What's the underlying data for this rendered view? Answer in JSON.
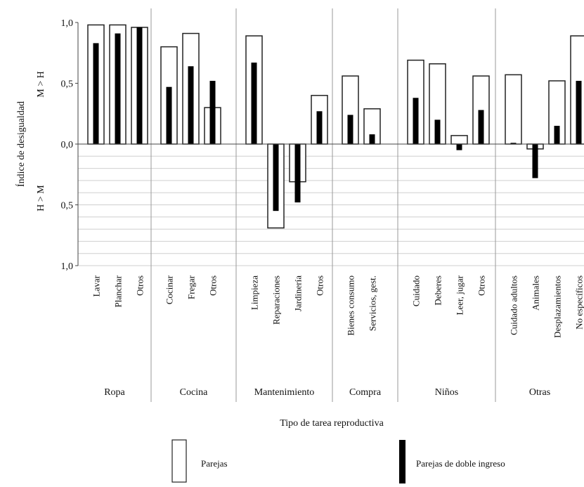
{
  "chart_data": {
    "type": "bar",
    "xlabel": "Tipo de tarea reproductiva",
    "ylabel": "Índice de desigualdad",
    "y_direction_labels": {
      "positive": "M > H",
      "negative": "H > M"
    },
    "ylim": [
      -1.0,
      1.0
    ],
    "yticks": [
      {
        "value": 1.0,
        "label": "1,0"
      },
      {
        "value": 0.5,
        "label": "0,5"
      },
      {
        "value": 0.0,
        "label": "0,0"
      },
      {
        "value": -0.5,
        "label": "0,5"
      },
      {
        "value": -1.0,
        "label": "1,0"
      }
    ],
    "grid": "horizontal, lower half",
    "legend_position": "bottom",
    "series": [
      {
        "name": "Parejas",
        "style": "hollow",
        "color": "#ffffff"
      },
      {
        "name": "Parejas de doble ingreso",
        "style": "solid",
        "color": "#000000"
      }
    ],
    "groups": [
      {
        "name": "Ropa",
        "tasks": [
          {
            "label": "Lavar",
            "values": [
              0.98,
              0.83
            ]
          },
          {
            "label": "Planchar",
            "values": [
              0.98,
              0.91
            ]
          },
          {
            "label": "Otros",
            "values": [
              0.96,
              0.96
            ]
          }
        ]
      },
      {
        "name": "Cocina",
        "tasks": [
          {
            "label": "Cocinar",
            "values": [
              0.8,
              0.47
            ]
          },
          {
            "label": "Fregar",
            "values": [
              0.91,
              0.64
            ]
          },
          {
            "label": "Otros",
            "values": [
              0.3,
              0.52
            ]
          }
        ]
      },
      {
        "name": "Mantenimiento",
        "tasks": [
          {
            "label": "Limpieza",
            "values": [
              0.89,
              0.67
            ]
          },
          {
            "label": "Reparaciones",
            "values": [
              -0.69,
              -0.55
            ]
          },
          {
            "label": "Jardinería",
            "values": [
              -0.31,
              -0.48
            ]
          },
          {
            "label": "Otros",
            "values": [
              0.4,
              0.27
            ]
          }
        ]
      },
      {
        "name": "Compra",
        "tasks": [
          {
            "label": "Bienes consumo",
            "values": [
              0.56,
              0.24
            ]
          },
          {
            "label": "Servicios, gest.",
            "values": [
              0.29,
              0.08
            ]
          }
        ]
      },
      {
        "name": "Niños",
        "tasks": [
          {
            "label": "Cuidado",
            "values": [
              0.69,
              0.38
            ]
          },
          {
            "label": "Deberes",
            "values": [
              0.66,
              0.2
            ]
          },
          {
            "label": "Leer, jugar",
            "values": [
              0.07,
              -0.05
            ]
          },
          {
            "label": "Otros",
            "values": [
              0.56,
              0.28
            ]
          }
        ]
      },
      {
        "name": "Otras",
        "tasks": [
          {
            "label": "Cuidado adultos",
            "values": [
              0.57,
              0.01
            ]
          },
          {
            "label": "Animales",
            "values": [
              -0.04,
              -0.28
            ]
          },
          {
            "label": "Desplazamientos",
            "values": [
              0.52,
              0.15
            ]
          },
          {
            "label": "No específicos",
            "values": [
              0.89,
              0.52
            ]
          }
        ]
      }
    ]
  }
}
